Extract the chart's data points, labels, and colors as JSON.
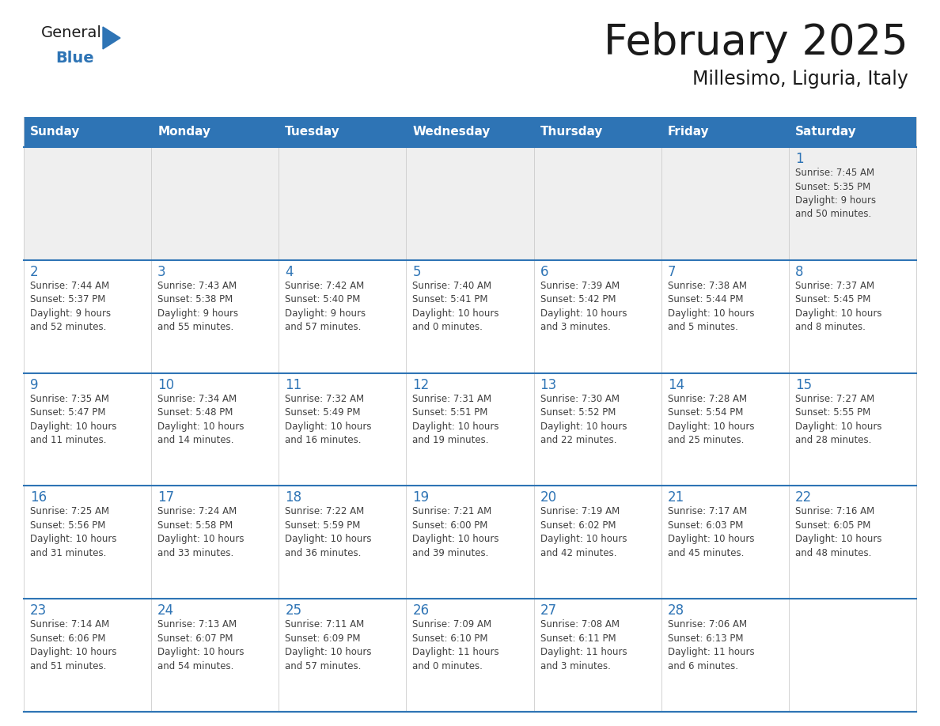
{
  "title": "February 2025",
  "subtitle": "Millesimo, Liguria, Italy",
  "header_color": "#2e74b5",
  "header_text_color": "#ffffff",
  "border_color": "#2e74b5",
  "day_number_color": "#2e74b5",
  "info_text_color": "#404040",
  "row1_bg": "#efefef",
  "cell_bg": "#ffffff",
  "days_of_week": [
    "Sunday",
    "Monday",
    "Tuesday",
    "Wednesday",
    "Thursday",
    "Friday",
    "Saturday"
  ],
  "weeks": [
    [
      {
        "day": "",
        "info": ""
      },
      {
        "day": "",
        "info": ""
      },
      {
        "day": "",
        "info": ""
      },
      {
        "day": "",
        "info": ""
      },
      {
        "day": "",
        "info": ""
      },
      {
        "day": "",
        "info": ""
      },
      {
        "day": "1",
        "info": "Sunrise: 7:45 AM\nSunset: 5:35 PM\nDaylight: 9 hours\nand 50 minutes."
      }
    ],
    [
      {
        "day": "2",
        "info": "Sunrise: 7:44 AM\nSunset: 5:37 PM\nDaylight: 9 hours\nand 52 minutes."
      },
      {
        "day": "3",
        "info": "Sunrise: 7:43 AM\nSunset: 5:38 PM\nDaylight: 9 hours\nand 55 minutes."
      },
      {
        "day": "4",
        "info": "Sunrise: 7:42 AM\nSunset: 5:40 PM\nDaylight: 9 hours\nand 57 minutes."
      },
      {
        "day": "5",
        "info": "Sunrise: 7:40 AM\nSunset: 5:41 PM\nDaylight: 10 hours\nand 0 minutes."
      },
      {
        "day": "6",
        "info": "Sunrise: 7:39 AM\nSunset: 5:42 PM\nDaylight: 10 hours\nand 3 minutes."
      },
      {
        "day": "7",
        "info": "Sunrise: 7:38 AM\nSunset: 5:44 PM\nDaylight: 10 hours\nand 5 minutes."
      },
      {
        "day": "8",
        "info": "Sunrise: 7:37 AM\nSunset: 5:45 PM\nDaylight: 10 hours\nand 8 minutes."
      }
    ],
    [
      {
        "day": "9",
        "info": "Sunrise: 7:35 AM\nSunset: 5:47 PM\nDaylight: 10 hours\nand 11 minutes."
      },
      {
        "day": "10",
        "info": "Sunrise: 7:34 AM\nSunset: 5:48 PM\nDaylight: 10 hours\nand 14 minutes."
      },
      {
        "day": "11",
        "info": "Sunrise: 7:32 AM\nSunset: 5:49 PM\nDaylight: 10 hours\nand 16 minutes."
      },
      {
        "day": "12",
        "info": "Sunrise: 7:31 AM\nSunset: 5:51 PM\nDaylight: 10 hours\nand 19 minutes."
      },
      {
        "day": "13",
        "info": "Sunrise: 7:30 AM\nSunset: 5:52 PM\nDaylight: 10 hours\nand 22 minutes."
      },
      {
        "day": "14",
        "info": "Sunrise: 7:28 AM\nSunset: 5:54 PM\nDaylight: 10 hours\nand 25 minutes."
      },
      {
        "day": "15",
        "info": "Sunrise: 7:27 AM\nSunset: 5:55 PM\nDaylight: 10 hours\nand 28 minutes."
      }
    ],
    [
      {
        "day": "16",
        "info": "Sunrise: 7:25 AM\nSunset: 5:56 PM\nDaylight: 10 hours\nand 31 minutes."
      },
      {
        "day": "17",
        "info": "Sunrise: 7:24 AM\nSunset: 5:58 PM\nDaylight: 10 hours\nand 33 minutes."
      },
      {
        "day": "18",
        "info": "Sunrise: 7:22 AM\nSunset: 5:59 PM\nDaylight: 10 hours\nand 36 minutes."
      },
      {
        "day": "19",
        "info": "Sunrise: 7:21 AM\nSunset: 6:00 PM\nDaylight: 10 hours\nand 39 minutes."
      },
      {
        "day": "20",
        "info": "Sunrise: 7:19 AM\nSunset: 6:02 PM\nDaylight: 10 hours\nand 42 minutes."
      },
      {
        "day": "21",
        "info": "Sunrise: 7:17 AM\nSunset: 6:03 PM\nDaylight: 10 hours\nand 45 minutes."
      },
      {
        "day": "22",
        "info": "Sunrise: 7:16 AM\nSunset: 6:05 PM\nDaylight: 10 hours\nand 48 minutes."
      }
    ],
    [
      {
        "day": "23",
        "info": "Sunrise: 7:14 AM\nSunset: 6:06 PM\nDaylight: 10 hours\nand 51 minutes."
      },
      {
        "day": "24",
        "info": "Sunrise: 7:13 AM\nSunset: 6:07 PM\nDaylight: 10 hours\nand 54 minutes."
      },
      {
        "day": "25",
        "info": "Sunrise: 7:11 AM\nSunset: 6:09 PM\nDaylight: 10 hours\nand 57 minutes."
      },
      {
        "day": "26",
        "info": "Sunrise: 7:09 AM\nSunset: 6:10 PM\nDaylight: 11 hours\nand 0 minutes."
      },
      {
        "day": "27",
        "info": "Sunrise: 7:08 AM\nSunset: 6:11 PM\nDaylight: 11 hours\nand 3 minutes."
      },
      {
        "day": "28",
        "info": "Sunrise: 7:06 AM\nSunset: 6:13 PM\nDaylight: 11 hours\nand 6 minutes."
      },
      {
        "day": "",
        "info": ""
      }
    ]
  ]
}
